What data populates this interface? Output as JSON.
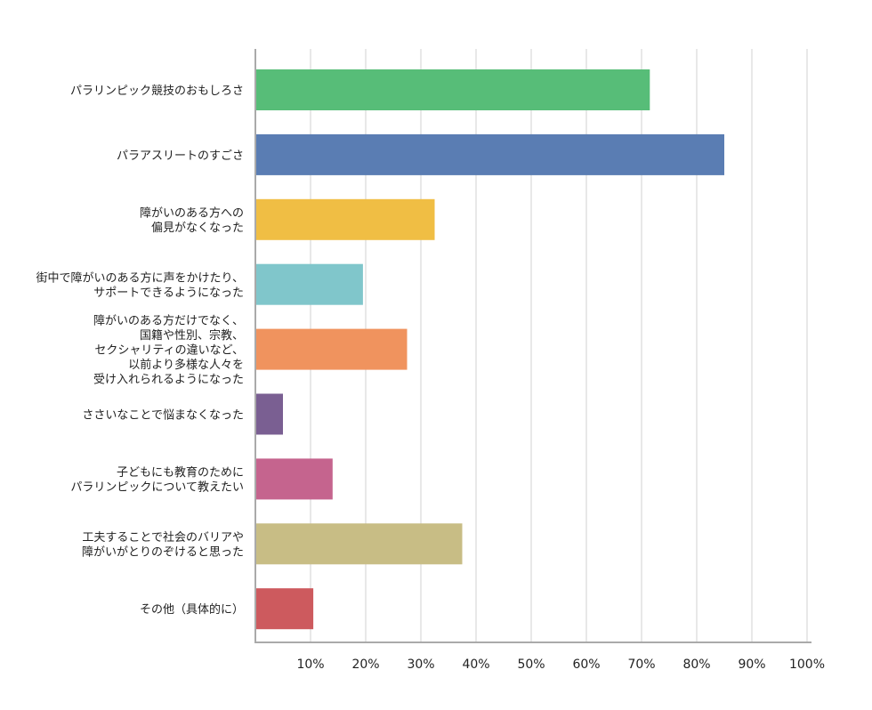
{
  "chart_data": {
    "type": "bar",
    "orientation": "horizontal",
    "categories": [
      [
        "パラリンピック競技のおもしろさ"
      ],
      [
        "パラアスリートのすごさ"
      ],
      [
        "障がいのある方への",
        "偏見がなくなった"
      ],
      [
        "街中で障がいのある方に声をかけたり、",
        "サポートできるようになった"
      ],
      [
        "障がいのある方だけでなく、",
        "国籍や性別、宗教、",
        "セクシャリティの違いなど、",
        "以前より多様な人々を",
        "受け入れられるようになった"
      ],
      [
        "ささいなことで悩まなくなった"
      ],
      [
        "子どもにも教育のために",
        "パラリンピックについて教えたい"
      ],
      [
        "工夫することで社会のバリアや",
        "障がいがとりのぞけると思った"
      ],
      [
        "その他（具体的に）"
      ]
    ],
    "values": [
      71.5,
      85,
      32.5,
      19.5,
      27.5,
      5,
      14,
      37.5,
      10.5
    ],
    "colors": [
      "#57bd78",
      "#5a7db3",
      "#f0be44",
      "#80c6cb",
      "#f0935e",
      "#7a5f92",
      "#c5648e",
      "#c8bd85",
      "#cd5a5e"
    ],
    "x_ticks": [
      "10%",
      "20%",
      "30%",
      "40%",
      "50%",
      "60%",
      "70%",
      "80%",
      "90%",
      "100%"
    ],
    "xlim": [
      0,
      100
    ],
    "grid": true,
    "title": "",
    "xlabel": "",
    "ylabel": ""
  }
}
